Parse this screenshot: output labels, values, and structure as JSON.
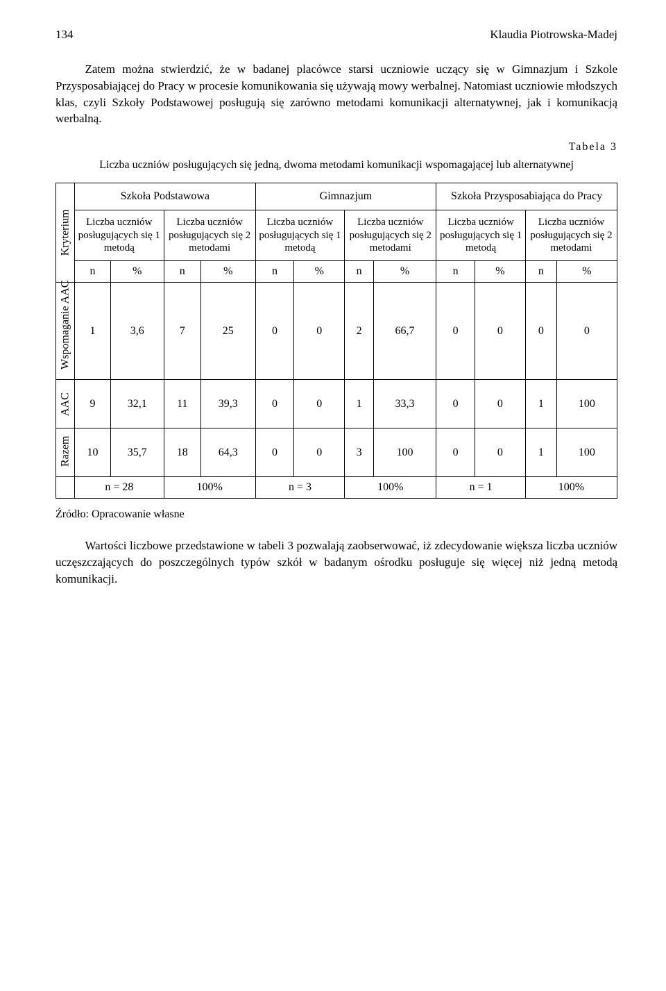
{
  "page_number": "134",
  "author": "Klaudia Piotrowska-Madej",
  "para1": "Zatem można stwierdzić, że w badanej placówce starsi uczniowie uczący się w Gimnazjum i Szkole Przysposabiającej do Pracy w procesie komunikowania się używają mowy werbalnej. Natomiast uczniowie młodszych klas, czyli Szkoły Podstawowej posługują się zarówno metodami komunikacji alternatywnej, jak i komunikacją werbalną.",
  "table_label": "Tabela 3",
  "table_title": "Liczba uczniów posługujących się jedną, dwoma metodami komunikacji wspomagającej lub alternatywnej",
  "heads": {
    "crit": "Kryterium",
    "sp": "Szkoła Podstawowa",
    "gim": "Gimnazjum",
    "spr": "Szkoła Przysposabiająca do Pracy",
    "m1": "Liczba uczniów posługujących się 1 metodą",
    "m2": "Liczba uczniów posługujących się 2 metodami",
    "n": "n",
    "pct": "%"
  },
  "rows": {
    "wsp": {
      "label": "Wspomaganie AAC",
      "v": [
        "1",
        "3,6",
        "7",
        "25",
        "0",
        "0",
        "2",
        "66,7",
        "0",
        "0",
        "0",
        "0"
      ]
    },
    "aac": {
      "label": "AAC",
      "v": [
        "9",
        "32,1",
        "11",
        "39,3",
        "0",
        "0",
        "1",
        "33,3",
        "0",
        "0",
        "1",
        "100"
      ]
    },
    "raz": {
      "label": "Razem",
      "v": [
        "10",
        "35,7",
        "18",
        "64,3",
        "0",
        "0",
        "3",
        "100",
        "0",
        "0",
        "1",
        "100"
      ]
    }
  },
  "totals": {
    "a_n": "n = 28",
    "a_p": "100%",
    "b_n": "n = 3",
    "b_p": "100%",
    "c_n": "n = 1",
    "c_p": "100%"
  },
  "source": "Źródło: Opracowanie własne",
  "para2": "Wartości liczbowe przedstawione w tabeli 3 pozwalają zaobserwować, iż zdecydowanie większa liczba uczniów uczęszczających do poszczególnych typów szkół w badanym ośrodku posługuje się więcej niż jedną metodą komunikacji."
}
